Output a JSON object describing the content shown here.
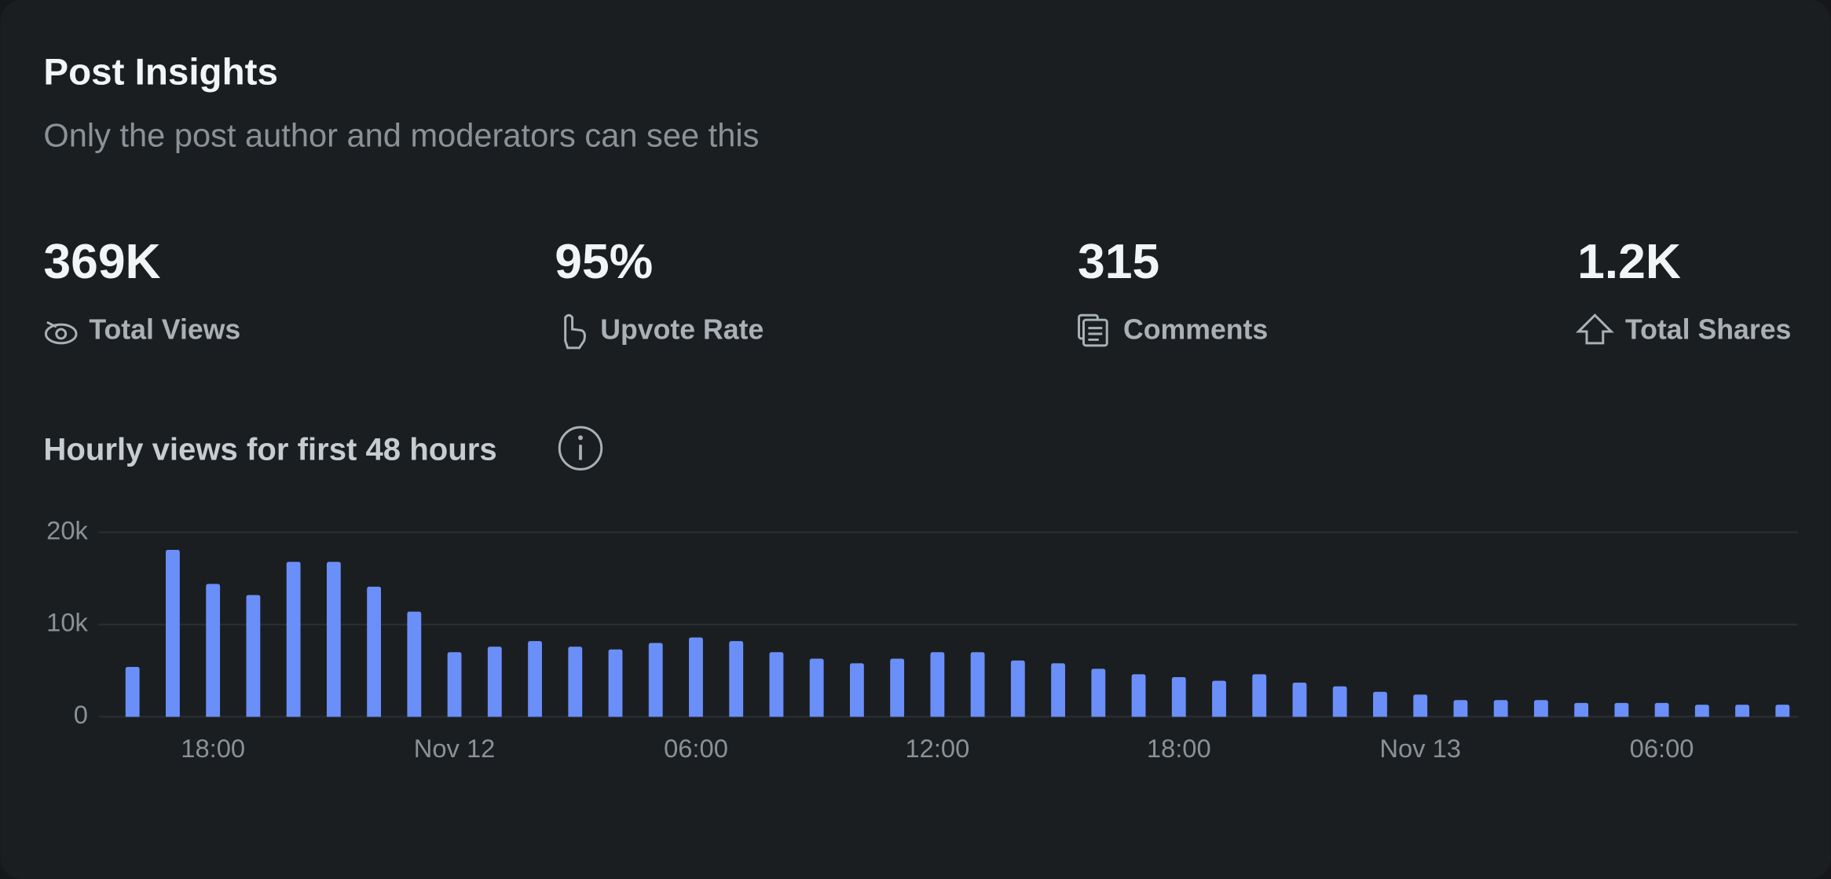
{
  "header": {
    "title": "Post Insights",
    "subtitle": "Only the post author and moderators can see this"
  },
  "stats": [
    {
      "value": "369K",
      "label": "Total Views"
    },
    {
      "value": "95%",
      "label": "Upvote Rate"
    },
    {
      "value": "315",
      "label": "Comments"
    },
    {
      "value": "1.2K",
      "label": "Total Shares"
    }
  ],
  "chart_data": {
    "type": "bar",
    "title": "Hourly views for first 48 hours",
    "categories": [
      null,
      null,
      "18:00",
      null,
      null,
      null,
      null,
      null,
      "Nov 12",
      null,
      null,
      null,
      null,
      null,
      "06:00",
      null,
      null,
      null,
      null,
      null,
      "12:00",
      null,
      null,
      null,
      null,
      null,
      "18:00",
      null,
      null,
      null,
      null,
      null,
      "Nov 13",
      null,
      null,
      null,
      null,
      null,
      "06:00",
      null,
      null,
      null
    ],
    "values": [
      5400,
      18100,
      14400,
      13200,
      16800,
      16800,
      14100,
      11400,
      7000,
      7600,
      8200,
      7600,
      7300,
      8000,
      8600,
      8200,
      7000,
      6300,
      5800,
      6300,
      7000,
      7000,
      6100,
      5800,
      5200,
      4600,
      4300,
      3900,
      4600,
      3700,
      3300,
      2700,
      2400,
      1800,
      1800,
      1800,
      1500,
      1500,
      1500,
      1300,
      1300,
      1300
    ],
    "color": "#6b8ff8",
    "ylim": [
      0,
      20000
    ],
    "yticks": [
      0,
      {
        "value": 10000,
        "label": "10k"
      },
      {
        "value": 20000,
        "label": "20k"
      }
    ],
    "grid": true
  }
}
